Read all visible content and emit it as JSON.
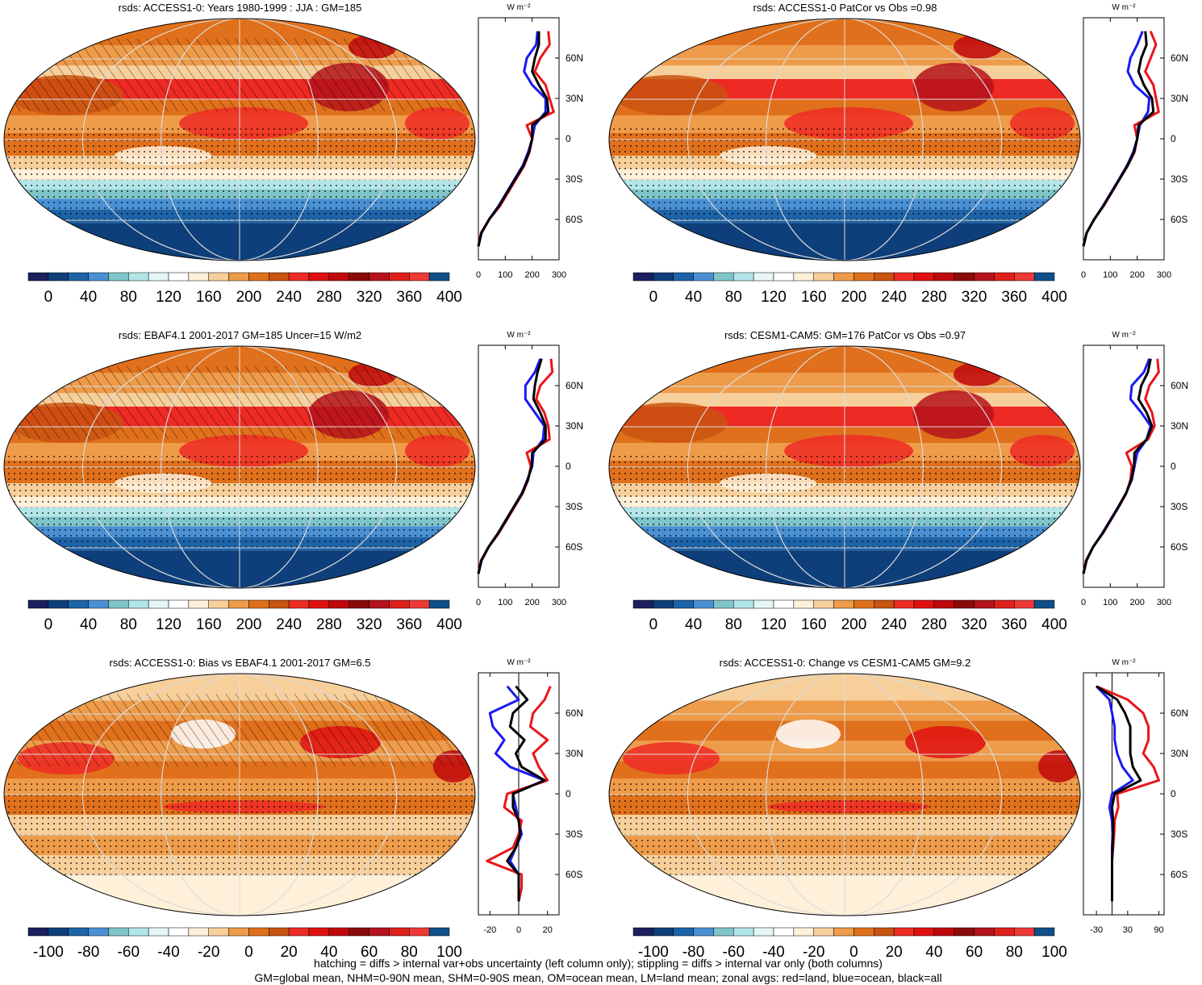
{
  "panels": [
    {
      "id": "p1",
      "title": "rsds: ACCESS1-0: Years 1980-1999 : JJA : GM=185",
      "map_type": "clim",
      "hatch": true,
      "colorbar": {
        "palette": "clim",
        "labels": [
          "0",
          "40",
          "80",
          "120",
          "160",
          "200",
          "240",
          "280",
          "320",
          "360",
          "400"
        ]
      },
      "zonal_unit": "W m⁻²",
      "zonal_xticks": [
        "0",
        "100",
        "200",
        "300"
      ],
      "zonal_yticks": [
        "60N",
        "30N",
        "0",
        "30S",
        "60S"
      ],
      "zonal_xrange": [
        0,
        300
      ]
    },
    {
      "id": "p2",
      "title": "rsds: ACCESS1-0 PatCor vs Obs =0.98",
      "map_type": "clim",
      "hatch": false,
      "colorbar": {
        "palette": "clim",
        "labels": [
          "0",
          "40",
          "80",
          "120",
          "160",
          "200",
          "240",
          "280",
          "320",
          "360",
          "400"
        ]
      },
      "zonal_unit": "W m⁻²",
      "zonal_xticks": [
        "0",
        "100",
        "200",
        "300"
      ],
      "zonal_yticks": [
        "60N",
        "30N",
        "0",
        "30S",
        "60S"
      ],
      "zonal_xrange": [
        0,
        300
      ]
    },
    {
      "id": "p3",
      "title": "rsds: EBAF4.1 2001-2017 GM=185 Uncer=15 W/m2",
      "map_type": "clim",
      "hatch": true,
      "colorbar": {
        "palette": "clim",
        "labels": [
          "0",
          "40",
          "80",
          "120",
          "160",
          "200",
          "240",
          "280",
          "320",
          "360",
          "400"
        ]
      },
      "zonal_unit": "W m⁻²",
      "zonal_xticks": [
        "0",
        "100",
        "200",
        "300"
      ],
      "zonal_yticks": [
        "60N",
        "30N",
        "0",
        "30S",
        "60S"
      ],
      "zonal_xrange": [
        0,
        300
      ]
    },
    {
      "id": "p4",
      "title": "rsds: CESM1-CAM5: GM=176 PatCor vs Obs =0.97",
      "map_type": "clim",
      "hatch": false,
      "colorbar": {
        "palette": "clim",
        "labels": [
          "0",
          "40",
          "80",
          "120",
          "160",
          "200",
          "240",
          "280",
          "320",
          "360",
          "400"
        ]
      },
      "zonal_unit": "W m⁻²",
      "zonal_xticks": [
        "0",
        "100",
        "200",
        "300"
      ],
      "zonal_yticks": [
        "60N",
        "30N",
        "0",
        "30S",
        "60S"
      ],
      "zonal_xrange": [
        0,
        300
      ]
    },
    {
      "id": "p5",
      "title": "rsds: ACCESS1-0: Bias vs EBAF4.1 2001-2017 GM=6.5",
      "map_type": "diff",
      "hatch": true,
      "colorbar": {
        "palette": "diff",
        "labels": [
          "-100",
          "-80",
          "-60",
          "-40",
          "-20",
          "0",
          "20",
          "40",
          "60",
          "80",
          "100"
        ]
      },
      "zonal_unit": "W m⁻²",
      "zonal_xticks": [
        "-20",
        "0",
        "20"
      ],
      "zonal_yticks": [
        "60N",
        "30N",
        "0",
        "30S",
        "60S"
      ],
      "zonal_xrange": [
        -28,
        28
      ]
    },
    {
      "id": "p6",
      "title": "rsds: ACCESS1-0: Change vs CESM1-CAM5 GM=9.2",
      "map_type": "diff",
      "hatch": false,
      "colorbar": {
        "palette": "diff",
        "labels": [
          "-100",
          "-80",
          "-60",
          "-40",
          "-20",
          "0",
          "20",
          "40",
          "60",
          "80",
          "100"
        ]
      },
      "zonal_unit": "W m⁻²",
      "zonal_xticks": [
        "-30",
        "30",
        "90"
      ],
      "zonal_yticks": [
        "60N",
        "30N",
        "0",
        "30S",
        "60S"
      ],
      "zonal_xrange": [
        -55,
        100
      ]
    }
  ],
  "palettes": {
    "clim": [
      "#1b1f5e",
      "#0e3f7a",
      "#1d63a8",
      "#4a90d4",
      "#7fc4c8",
      "#b2e6e8",
      "#e6f6f6",
      "#ffffff",
      "#fff0d9",
      "#f7cf9b",
      "#ee9b4a",
      "#e0701b",
      "#c95310",
      "#ee2a24",
      "#e01010",
      "#c0080c",
      "#8a0a0a",
      "#b5131b",
      "#e0201b",
      "#ee3a36",
      "#0f4f8a"
    ],
    "diff": [
      "#1b1f5e",
      "#0e3f7a",
      "#1d63a8",
      "#4a90d4",
      "#7fc4c8",
      "#b2e6e8",
      "#e6f6f6",
      "#ffffff",
      "#fff0d9",
      "#f7cf9b",
      "#ee9b4a",
      "#e0701b",
      "#c95310",
      "#ee2a24",
      "#e01010",
      "#c0080c",
      "#8a0a0a",
      "#b5131b",
      "#e0201b",
      "#ee3a36",
      "#0f4f8a"
    ]
  },
  "chart_data": {
    "type": "heatmap",
    "description_variable": "rsds",
    "zonal_profiles": {
      "latitudes": [
        80,
        70,
        60,
        50,
        40,
        30,
        20,
        10,
        0,
        -10,
        -20,
        -30,
        -40,
        -50,
        -60,
        -70,
        -80
      ],
      "p1": {
        "land": [
          260,
          265,
          230,
          210,
          250,
          265,
          280,
          180,
          200,
          190,
          170,
          140,
          110,
          80,
          40,
          10,
          0
        ],
        "ocean": [
          220,
          215,
          180,
          170,
          200,
          250,
          250,
          210,
          200,
          185,
          165,
          135,
          105,
          75,
          40,
          12,
          0
        ],
        "all": [
          225,
          225,
          210,
          200,
          225,
          255,
          260,
          200,
          200,
          188,
          168,
          137,
          107,
          77,
          40,
          11,
          0
        ]
      },
      "p2": {
        "land": [
          250,
          270,
          250,
          230,
          260,
          270,
          280,
          190,
          200,
          190,
          165,
          135,
          105,
          75,
          40,
          12,
          0
        ],
        "ocean": [
          220,
          200,
          175,
          165,
          190,
          245,
          240,
          210,
          200,
          185,
          162,
          133,
          103,
          73,
          40,
          12,
          0
        ],
        "all": [
          230,
          235,
          215,
          205,
          225,
          255,
          260,
          205,
          200,
          188,
          164,
          134,
          104,
          74,
          40,
          12,
          0
        ]
      },
      "p3": {
        "land": [
          270,
          275,
          230,
          215,
          245,
          260,
          265,
          180,
          195,
          185,
          165,
          135,
          105,
          75,
          38,
          10,
          0
        ],
        "ocean": [
          230,
          210,
          175,
          175,
          210,
          245,
          240,
          205,
          200,
          182,
          162,
          132,
          102,
          72,
          38,
          12,
          0
        ],
        "all": [
          235,
          220,
          210,
          205,
          230,
          250,
          250,
          200,
          198,
          184,
          163,
          133,
          103,
          73,
          38,
          11,
          0
        ]
      },
      "p4": {
        "land": [
          275,
          280,
          245,
          230,
          255,
          265,
          240,
          160,
          180,
          175,
          160,
          132,
          102,
          72,
          36,
          10,
          0
        ],
        "ocean": [
          245,
          225,
          180,
          175,
          215,
          250,
          235,
          200,
          190,
          180,
          158,
          130,
          100,
          70,
          36,
          12,
          0
        ],
        "all": [
          250,
          240,
          215,
          205,
          235,
          255,
          235,
          190,
          188,
          178,
          159,
          131,
          101,
          71,
          36,
          11,
          0
        ]
      },
      "p5": {
        "land": [
          22,
          18,
          10,
          8,
          20,
          10,
          14,
          20,
          -8,
          -10,
          2,
          0,
          -4,
          -22,
          2,
          2,
          0
        ],
        "ocean": [
          -8,
          0,
          -20,
          -18,
          -10,
          -16,
          -6,
          18,
          -4,
          -2,
          0,
          2,
          -2,
          -6,
          0,
          0,
          0
        ],
        "all": [
          -2,
          6,
          -4,
          -6,
          4,
          -2,
          2,
          18,
          -4,
          -4,
          0,
          1,
          -2,
          -8,
          0,
          0,
          0
        ]
      },
      "p6": {
        "land": [
          -30,
          30,
          60,
          70,
          70,
          60,
          80,
          90,
          10,
          12,
          5,
          4,
          2,
          0,
          0,
          0,
          0
        ],
        "ocean": [
          -30,
          -5,
          0,
          5,
          5,
          10,
          20,
          40,
          0,
          -5,
          0,
          1,
          0,
          0,
          0,
          0,
          0
        ],
        "all": [
          -30,
          10,
          25,
          35,
          35,
          35,
          40,
          55,
          5,
          0,
          2,
          2,
          1,
          0,
          0,
          0,
          0
        ]
      }
    }
  },
  "footer": {
    "line1": "hatching = diffs > internal var+obs uncertainty (left column only); stippling = diffs > internal var only (both columns)",
    "line2": "GM=global mean, NHM=0-90N mean, SHM=0-90S mean, OM=ocean mean, LM=land mean; zonal avgs: red=land, blue=ocean, black=all"
  },
  "colors": {
    "land": "#e8161b",
    "ocean": "#1a1af0",
    "all": "#000000"
  }
}
